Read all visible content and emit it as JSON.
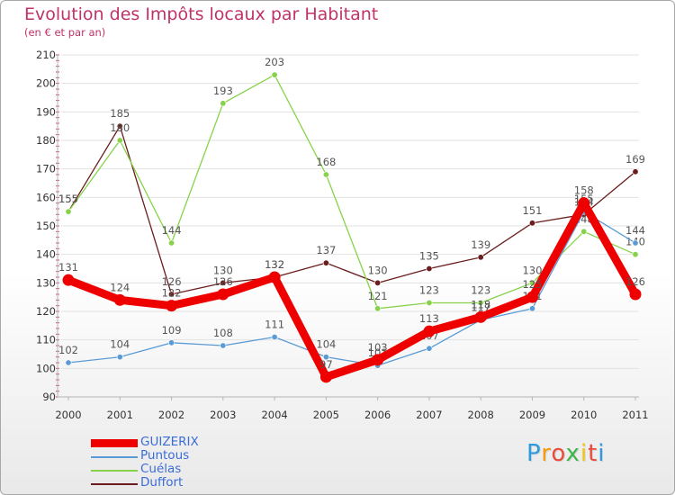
{
  "chart_data": {
    "type": "line",
    "title": "Evolution des Impôts locaux par Habitant",
    "subtitle": "(en € et par an)",
    "xlabel": "",
    "ylabel": "",
    "ylim": [
      90,
      210
    ],
    "yticks": [
      90,
      100,
      110,
      120,
      130,
      140,
      150,
      160,
      170,
      180,
      190,
      200,
      210
    ],
    "x": [
      "2000",
      "2001",
      "2002",
      "2003",
      "2004",
      "2005",
      "2006",
      "2007",
      "2008",
      "2009",
      "2010",
      "2011"
    ],
    "grid": "horizontal",
    "legend_position": "bottom-left",
    "series": [
      {
        "name": "Duffort",
        "color": "#6b1d1d",
        "values": [
          155,
          185,
          126,
          130,
          132,
          137,
          130,
          135,
          139,
          151,
          154,
          169
        ]
      },
      {
        "name": "Cuélas",
        "color": "#88d24a",
        "values": [
          155,
          180,
          144,
          193,
          203,
          168,
          121,
          123,
          123,
          130,
          148,
          140
        ]
      },
      {
        "name": "Puntous",
        "color": "#5b9bd5",
        "values": [
          102,
          104,
          109,
          108,
          111,
          104,
          101,
          107,
          117,
          121,
          155,
          144
        ]
      },
      {
        "name": "GUIZERIX",
        "color": "#ee0000",
        "values": [
          131,
          124,
          122,
          126,
          132,
          97,
          103,
          113,
          118,
          125,
          158,
          126
        ]
      }
    ]
  },
  "legend": {
    "items": [
      {
        "name": "GUIZERIX",
        "color": "#ee0000"
      },
      {
        "name": "Puntous",
        "color": "#5b9bd5"
      },
      {
        "name": "Cuélas",
        "color": "#88d24a"
      },
      {
        "name": "Duffort",
        "color": "#6b1d1d"
      }
    ]
  },
  "logo": {
    "letters": [
      "P",
      "r",
      "o",
      "x",
      "i",
      "t",
      "i"
    ],
    "colors": [
      "#2e9be0",
      "#f39c12",
      "#e84c3d",
      "#3fb44a",
      "#f1c40f",
      "#e84c3d",
      "#2e9be0"
    ]
  }
}
